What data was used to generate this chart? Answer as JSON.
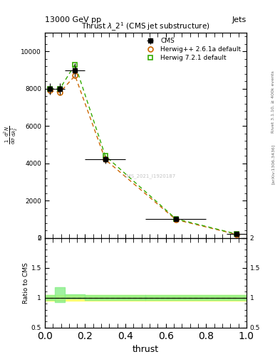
{
  "title_left": "13000 GeV pp",
  "title_right": "Jets",
  "plot_title": "Thrust $\\lambda\\_2^1$ (CMS jet substructure)",
  "ylabel_ratio": "Ratio to CMS",
  "xlabel": "thrust",
  "right_label_top": "Rivet 3.1.10, ≥ 400k events",
  "right_label_bot": "[arXiv:1306.3436]",
  "watermark": "CMS_2021_I1920187",
  "cms_x": [
    0.025,
    0.075,
    0.15,
    0.3,
    0.65,
    0.95
  ],
  "cms_y": [
    8000,
    8000,
    9000,
    4200,
    1000,
    200
  ],
  "cms_xerr": [
    0.025,
    0.025,
    0.05,
    0.1,
    0.15,
    0.05
  ],
  "cms_yerr": [
    300,
    300,
    350,
    200,
    80,
    20
  ],
  "herwig_pp_x": [
    0.025,
    0.075,
    0.15,
    0.3,
    0.65,
    0.95
  ],
  "herwig_pp_y": [
    7900,
    7800,
    8700,
    4200,
    980,
    190
  ],
  "herwig7_x": [
    0.025,
    0.075,
    0.15,
    0.3,
    0.65,
    0.95
  ],
  "herwig7_y": [
    8000,
    8000,
    9300,
    4400,
    1020,
    210
  ],
  "ratio_x": [
    0.0,
    0.05,
    0.1,
    0.2,
    0.5,
    1.0
  ],
  "ratio_hpp_y": [
    1.0,
    1.0,
    1.0,
    1.0,
    1.0,
    1.0
  ],
  "ratio_hpp_err": [
    0.05,
    0.05,
    0.05,
    0.05,
    0.05,
    0.05
  ],
  "ratio_h7_y": [
    1.0,
    1.05,
    1.02,
    1.0,
    1.0,
    1.0
  ],
  "ratio_h7_err": [
    0.04,
    0.12,
    0.04,
    0.04,
    0.04,
    0.04
  ],
  "ylim_main": [
    0,
    11000
  ],
  "yticks_main": [
    0,
    2000,
    4000,
    6000,
    8000,
    10000
  ],
  "ylim_ratio": [
    0.5,
    2.0
  ],
  "color_cms": "#000000",
  "color_herwig_pp": "#cc6600",
  "color_herwig7": "#33aa00",
  "color_band_hpp": "#ffff66",
  "color_band_h7": "#88ee88"
}
